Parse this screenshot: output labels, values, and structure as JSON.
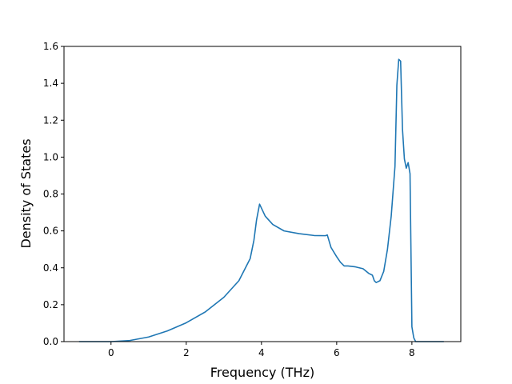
{
  "chart_data": {
    "type": "line",
    "xlabel": "Frequency (THz)",
    "ylabel": "Density of States",
    "xlim": [
      -1.25,
      9.3
    ],
    "ylim": [
      0,
      1.6
    ],
    "xticks": [
      0,
      2,
      4,
      6,
      8
    ],
    "yticks": [
      0.0,
      0.2,
      0.4,
      0.6,
      0.8,
      1.0,
      1.2,
      1.4,
      1.6
    ],
    "xtick_labels": [
      "0",
      "2",
      "4",
      "6",
      "8"
    ],
    "ytick_labels": [
      "0.0",
      "0.2",
      "0.4",
      "0.6",
      "0.8",
      "1.0",
      "1.2",
      "1.4",
      "1.6"
    ],
    "grid": false,
    "color": "#1f77b4",
    "series": [
      {
        "x": [
          -0.85,
          -0.5,
          0.0,
          0.5,
          1.0,
          1.5,
          2.0,
          2.5,
          3.0,
          3.4,
          3.7,
          3.8,
          3.87,
          3.95,
          4.1,
          4.3,
          4.6,
          5.0,
          5.4,
          5.7,
          5.75,
          5.85,
          6.0,
          6.1,
          6.2,
          6.3,
          6.5,
          6.7,
          6.85,
          6.95,
          7.0,
          7.05,
          7.15,
          7.25,
          7.35,
          7.45,
          7.55,
          7.6,
          7.65,
          7.7,
          7.75,
          7.8,
          7.85,
          7.9,
          7.95,
          8.0,
          8.05,
          8.1,
          8.5,
          8.85
        ],
        "y": [
          0.0,
          0.0,
          0.0,
          0.006,
          0.025,
          0.058,
          0.102,
          0.16,
          0.24,
          0.33,
          0.45,
          0.55,
          0.66,
          0.745,
          0.68,
          0.635,
          0.6,
          0.585,
          0.575,
          0.574,
          0.578,
          0.51,
          0.46,
          0.43,
          0.41,
          0.41,
          0.405,
          0.395,
          0.37,
          0.36,
          0.33,
          0.32,
          0.33,
          0.38,
          0.5,
          0.68,
          0.95,
          1.39,
          1.53,
          1.52,
          1.15,
          0.99,
          0.94,
          0.97,
          0.91,
          0.08,
          0.02,
          0.0,
          0.0,
          0.0
        ]
      }
    ]
  }
}
